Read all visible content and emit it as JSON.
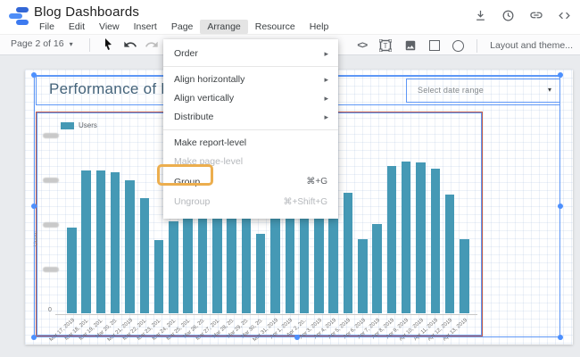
{
  "header": {
    "title": "Blog Dashboards",
    "menus": [
      "File",
      "Edit",
      "View",
      "Insert",
      "Page",
      "Arrange",
      "Resource",
      "Help"
    ],
    "active_menu": "Arrange",
    "action_icons": [
      "download-icon",
      "history-icon",
      "link-icon",
      "embed-code-icon"
    ]
  },
  "toolbar": {
    "page_selector": "Page 2 of 16",
    "left_icons": [
      "select-cursor-icon",
      "undo-icon",
      "redo-icon"
    ],
    "right_icons": [
      "embed-code-icon",
      "text-box-icon",
      "image-icon",
      "rectangle-icon",
      "circle-icon"
    ],
    "layout_theme_label": "Layout and theme..."
  },
  "arrange_menu": {
    "items": [
      {
        "label": "Order",
        "has_submenu": true,
        "enabled": true
      },
      {
        "label": "Align horizontally",
        "has_submenu": true,
        "enabled": true
      },
      {
        "label": "Align vertically",
        "has_submenu": true,
        "enabled": true
      },
      {
        "label": "Distribute",
        "has_submenu": true,
        "enabled": true
      },
      {
        "label": "Make report-level",
        "enabled": true
      },
      {
        "label": "Make page-level",
        "enabled": false
      },
      {
        "label": "Group",
        "shortcut": "⌘+G",
        "enabled": true,
        "highlighted": true
      },
      {
        "label": "Ungroup",
        "shortcut": "⌘+Shift+G",
        "enabled": false
      }
    ],
    "highlight_color": "#ecae4e"
  },
  "canvas": {
    "title_text": "Performance of b",
    "date_control_label": "Select date range",
    "selection_color": "#5e97f6",
    "chart_border_color": "#c05a4b"
  },
  "chart_data": {
    "type": "bar",
    "title": "",
    "legend_entries": [
      "Users"
    ],
    "legend_position": "top-left",
    "ylabel": "Users",
    "xlabel": "",
    "y_tick_labels": [
      "0",
      "(blurred)",
      "(blurred)",
      "(blurred)",
      "(blurred)"
    ],
    "bar_color": "#4599b5",
    "units": "bar heights in screen pixels; y-axis value labels are blurred/redacted in the screenshot, several bar tops occluded by the open menu are estimated",
    "categories": [
      "Mar 17, 2019",
      "Mar 18, 201.",
      "Mar 19, 201.",
      "Mar 20, 20.",
      "Mar 21, 2019",
      "Mar 22, 201.",
      "Mar 23, 201.",
      "Mar 24, 201.",
      "Mar 25, 201.",
      "Mar 26, 20.",
      "Mar 27, 201.",
      "Mar 28, 20.",
      "Mar 29, 20.",
      "Mar 30, 20.",
      "Mar 31, 2019",
      "Apr 1, 2019",
      "Apr 2, 20..",
      "Apr 3, 2019",
      "Apr 4, 2019",
      "Apr 5, 2019",
      "Apr 6, 2019",
      "Apr 7, 2019",
      "Apr 8, 2019",
      "Apr 9, 2019",
      "Apr 10, 2019",
      "Apr 11, 2019",
      "Apr 12, 2019",
      "Apr 13, 2019"
    ],
    "values": [
      96,
      160,
      160,
      158,
      149,
      129,
      82,
      103,
      120,
      130,
      138,
      132,
      122,
      89,
      118,
      125,
      128,
      125,
      162,
      135,
      83,
      100,
      165,
      170,
      169,
      162,
      133,
      83
    ]
  }
}
